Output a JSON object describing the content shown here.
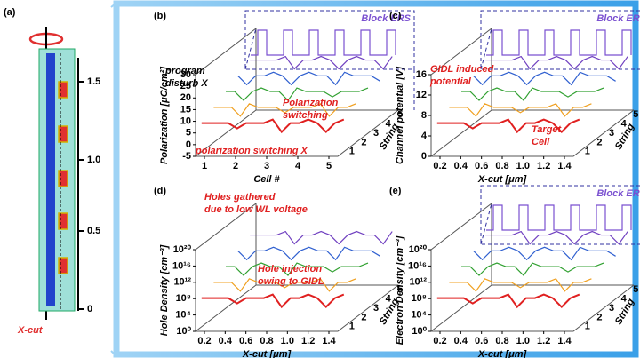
{
  "panel_a": {
    "label": "(a)",
    "scale_ticks": [
      "1.5",
      "1.0",
      "0.5",
      "0"
    ],
    "cut_label": "X-cut"
  },
  "panels": [
    {
      "label": "(b)",
      "inset": "Block ERS",
      "y_title": "Polarization [μC/cm²]",
      "x_title": "Cell #",
      "z_title": "String",
      "yticks": [
        "-5",
        "0",
        "5",
        "10",
        "15",
        "20",
        "25",
        "30"
      ],
      "xticks": [
        "1",
        "2",
        "3",
        "4",
        "5"
      ],
      "zticks": [
        "1",
        "2",
        "3",
        "4",
        "5"
      ],
      "annotations": [
        {
          "lines": [
            "program",
            "disturb X"
          ]
        },
        {
          "lines": [
            "Polarization",
            "switching"
          ]
        },
        {
          "lines": [
            "polarization switching X"
          ]
        }
      ]
    },
    {
      "label": "(c)",
      "inset": "Block ERS",
      "y_title": "Channel potential [V]",
      "x_title": "X-cut [μm]",
      "z_title": "String",
      "yticks": [
        "0",
        "4",
        "8",
        "12",
        "16"
      ],
      "xticks": [
        "0.2",
        "0.4",
        "0.6",
        "0.8",
        "1.0",
        "1.2",
        "1.4"
      ],
      "zticks": [
        "1",
        "2",
        "3",
        "4",
        "5"
      ],
      "annotations": [
        {
          "lines": [
            "GIDL induced",
            "potential"
          ]
        },
        {
          "lines": [
            "Target",
            "Cell"
          ]
        }
      ]
    },
    {
      "label": "(d)",
      "y_title": "Hole Density [cm⁻³]",
      "x_title": "X-cut [μm]",
      "z_title": "String",
      "yticks": [
        "10⁰",
        "10⁴",
        "10⁸",
        "10¹²",
        "10¹⁶",
        "10²⁰"
      ],
      "xticks": [
        "0.2",
        "0.4",
        "0.6",
        "0.8",
        "1.0",
        "1.2",
        "1.4"
      ],
      "zticks": [
        "1",
        "2",
        "3",
        "4",
        "5"
      ],
      "annotations": [
        {
          "lines": [
            "Holes gathered",
            "due to low WL voltage"
          ]
        },
        {
          "lines": [
            "Hole injection",
            "owing to GIDL"
          ]
        }
      ]
    },
    {
      "label": "(e)",
      "inset": "Block ERS",
      "y_title": "Electron Density [cm⁻³]",
      "x_title": "X-cut [μm]",
      "z_title": "String",
      "yticks": [
        "10⁰",
        "10⁴",
        "10⁸",
        "10¹²",
        "10¹⁶",
        "10²⁰"
      ],
      "xticks": [
        "0.2",
        "0.4",
        "0.6",
        "0.8",
        "1.0",
        "1.2",
        "1.4"
      ],
      "zticks": [
        "1",
        "2",
        "3",
        "4",
        "5"
      ],
      "annotations": []
    }
  ]
}
